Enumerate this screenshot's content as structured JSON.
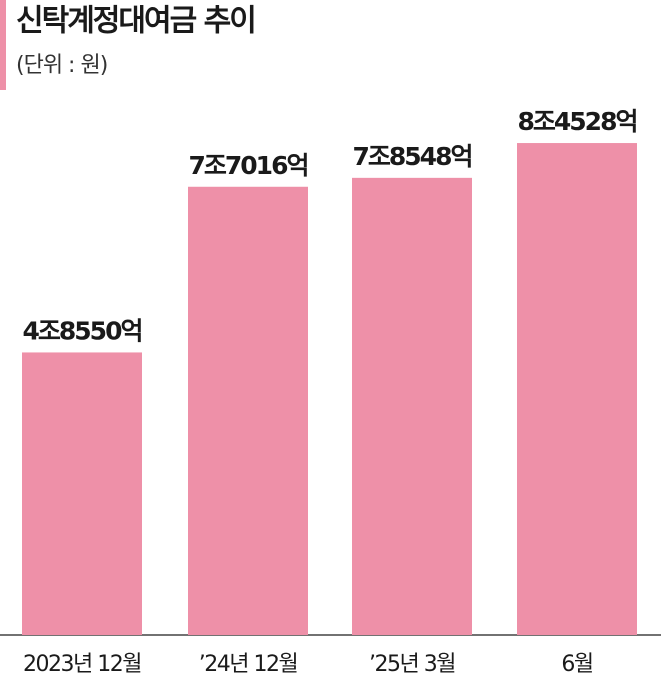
{
  "chart_data": {
    "type": "bar",
    "title": "신탁계정대여금 추이",
    "subtitle": "(단위 : 원)",
    "categories": [
      "2023년 12월",
      "’24년 12월",
      "’25년 3월",
      "6월"
    ],
    "values": [
      48550,
      77016,
      78548,
      84528
    ],
    "value_labels": [
      "4조8550억",
      "7조7016억",
      "7조8548억",
      "8조4528억"
    ],
    "color": "#ee90a8"
  }
}
